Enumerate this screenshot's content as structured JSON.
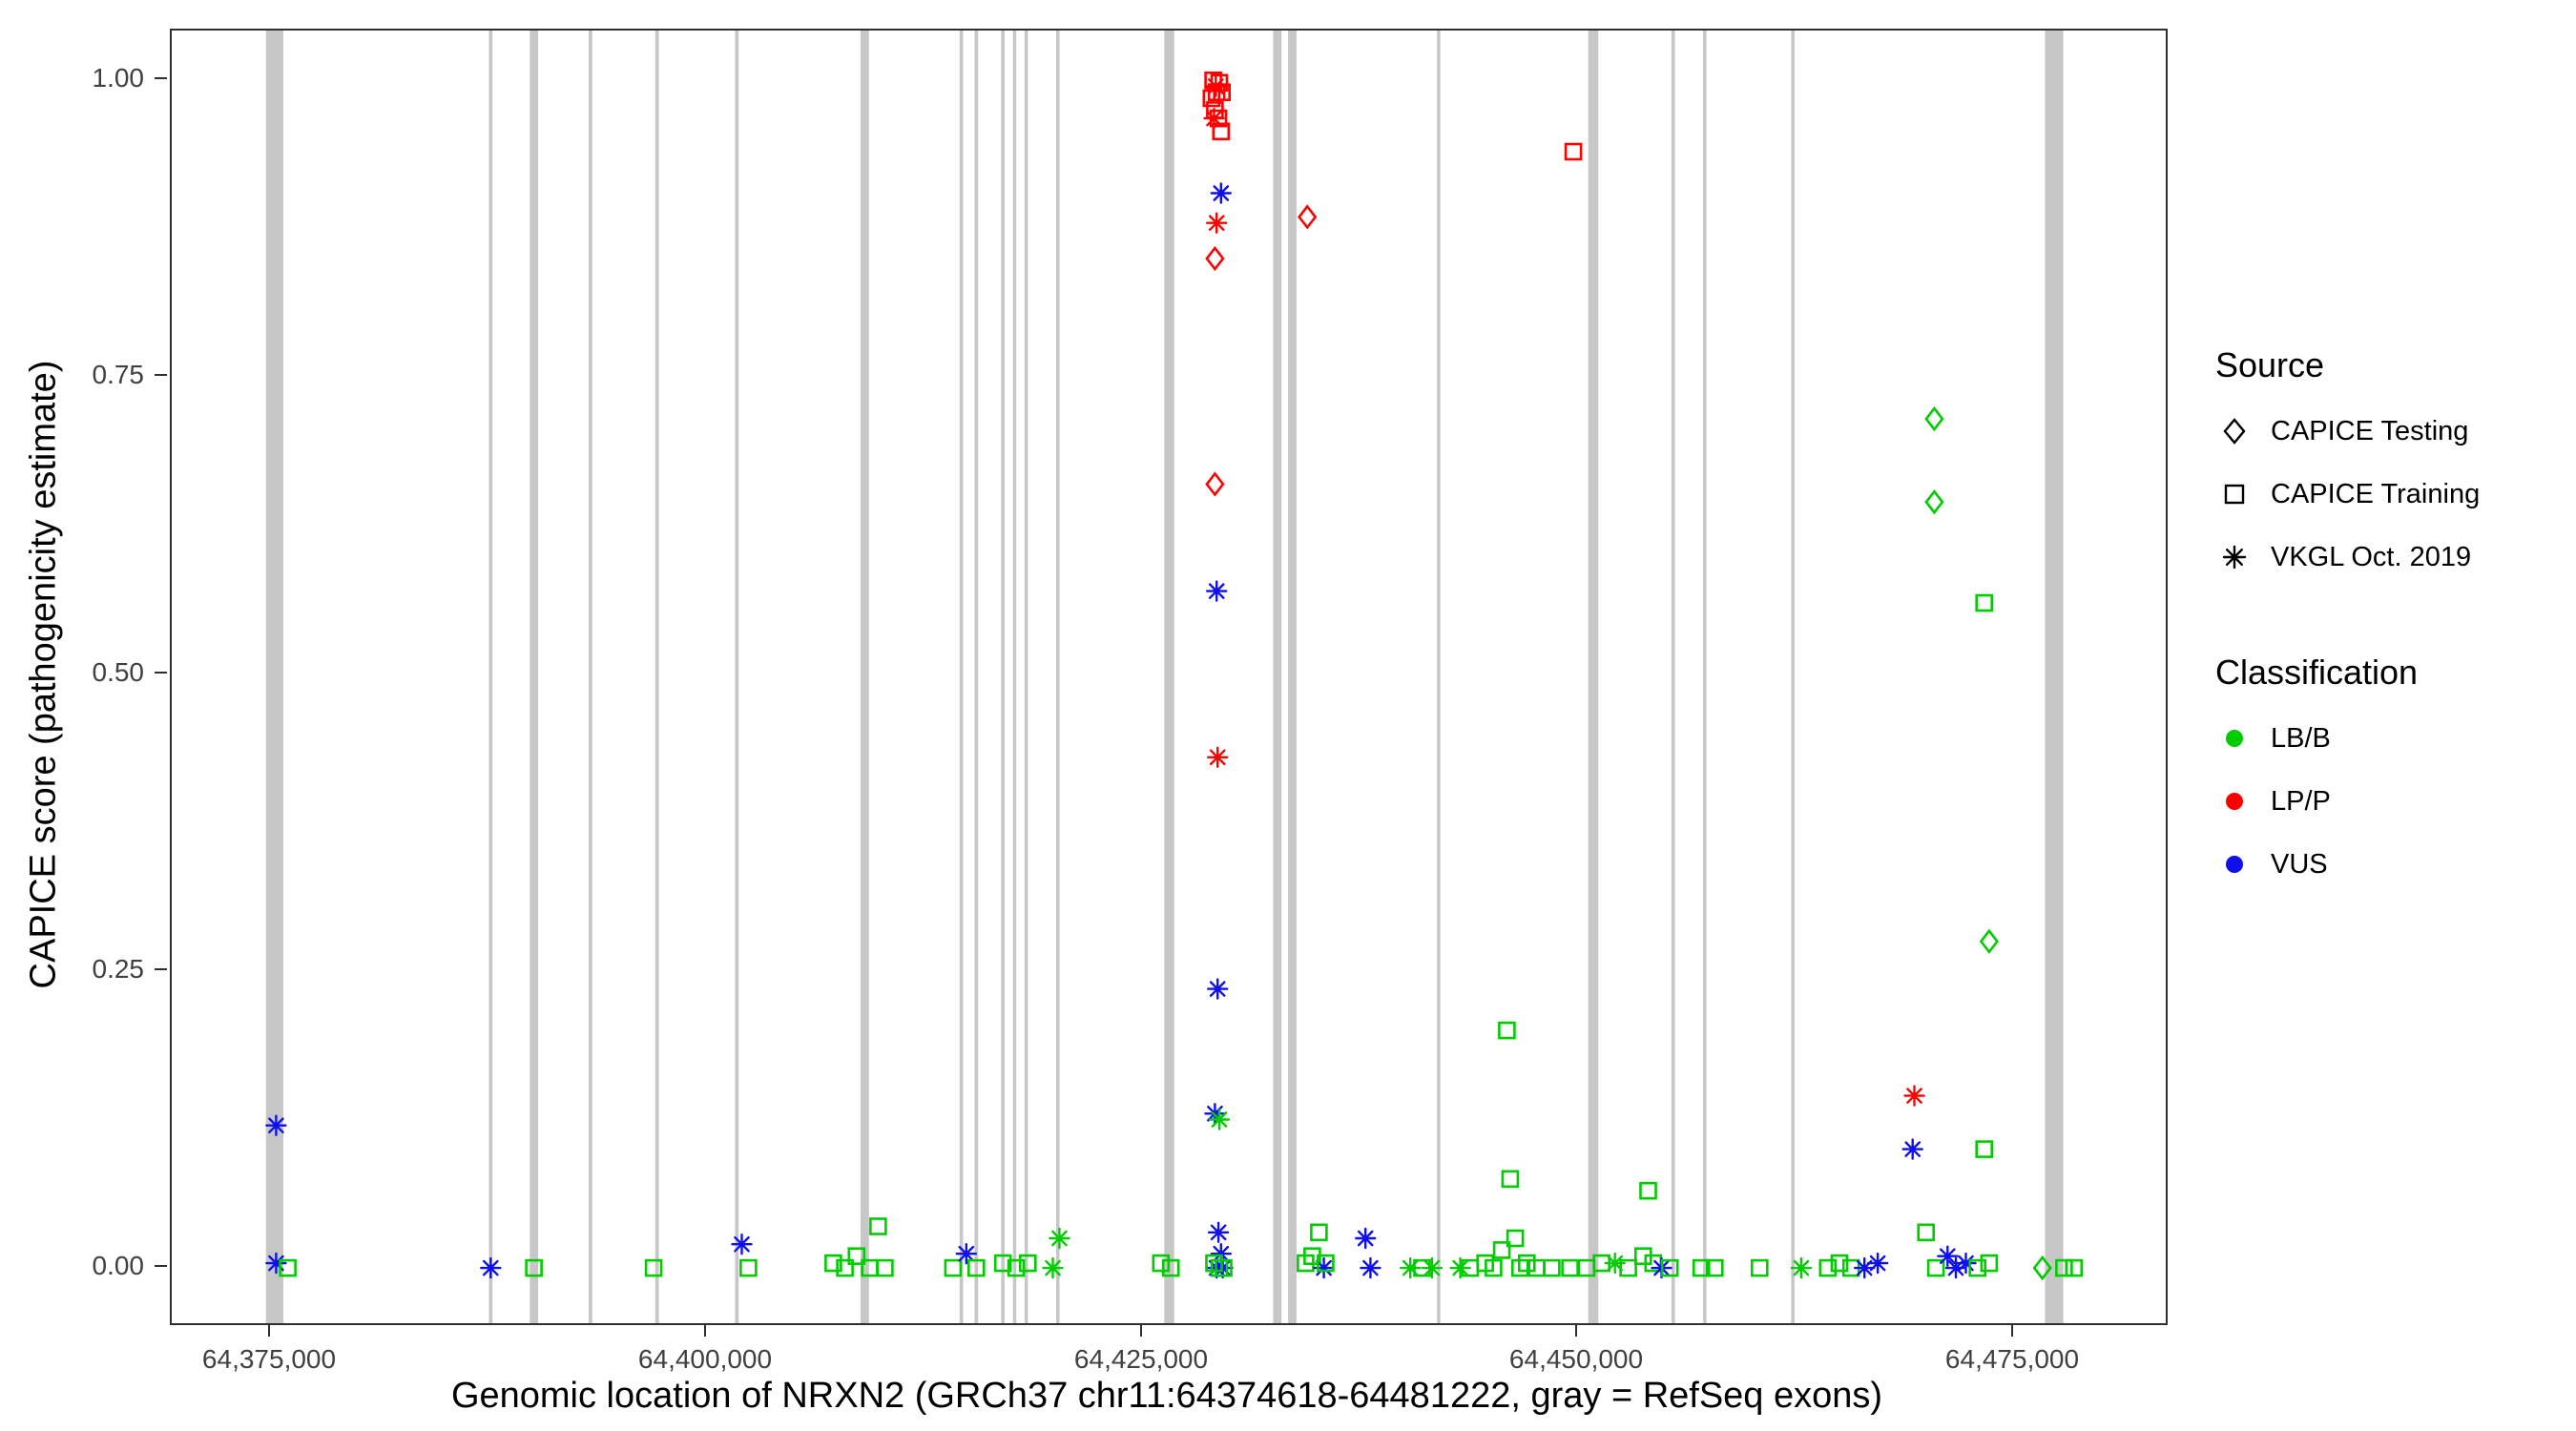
{
  "chart_data": {
    "type": "scatter",
    "title": "",
    "xlabel": "Genomic location of NRXN2 (GRCh37 chr11:64374618-64481222, gray = RefSeq exons)",
    "ylabel": "CAPICE score (pathogenicity estimate)",
    "x_domain": [
      64369300,
      64483700
    ],
    "y_domain": [
      -0.0465,
      1.042
    ],
    "x_ticks": [
      {
        "value": 64375000,
        "label": "64,375,000"
      },
      {
        "value": 64400000,
        "label": "64,400,000"
      },
      {
        "value": 64425000,
        "label": "64,425,000"
      },
      {
        "value": 64450000,
        "label": "64,450,000"
      },
      {
        "value": 64475000,
        "label": "64,475,000"
      }
    ],
    "y_ticks": [
      {
        "value": 0.0,
        "label": "0.00"
      },
      {
        "value": 0.25,
        "label": "0.25"
      },
      {
        "value": 0.5,
        "label": "0.50"
      },
      {
        "value": 0.75,
        "label": "0.75"
      },
      {
        "value": 1.0,
        "label": "1.00"
      }
    ],
    "legend": {
      "source": {
        "title": "Source",
        "items": [
          {
            "label": "CAPICE Testing",
            "shape": "diamond",
            "code": "test"
          },
          {
            "label": "CAPICE Training",
            "shape": "square",
            "code": "train"
          },
          {
            "label": "VKGL Oct. 2019",
            "shape": "asterisk",
            "code": "vkgl"
          }
        ]
      },
      "classification": {
        "title": "Classification",
        "items": [
          {
            "label": "LB/B",
            "color": "#00CC00",
            "code": "LB/B"
          },
          {
            "label": "LP/P",
            "color": "#FF0000",
            "code": "LP/P"
          },
          {
            "label": "VUS",
            "color": "#0F0FEE",
            "code": "VUS"
          }
        ]
      }
    },
    "exon_note": "gray = RefSeq exons",
    "exon_color": "#C7C7C7",
    "exons": [
      [
        64374700,
        64375700
      ],
      [
        64387500,
        64387700
      ],
      [
        64389840,
        64390320
      ],
      [
        64393220,
        64393420
      ],
      [
        64397040,
        64397250
      ],
      [
        64401620,
        64401820
      ],
      [
        64408820,
        64409300
      ],
      [
        64414500,
        64414700
      ],
      [
        64415360,
        64415560
      ],
      [
        64416890,
        64417080
      ],
      [
        64417560,
        64417750
      ],
      [
        64418230,
        64418420
      ],
      [
        64420040,
        64420230
      ],
      [
        64426240,
        64426810
      ],
      [
        64432490,
        64432970
      ],
      [
        64433350,
        64433830
      ],
      [
        64441890,
        64442080
      ],
      [
        64450570,
        64451150
      ],
      [
        64455340,
        64455540
      ],
      [
        64457160,
        64457350
      ],
      [
        64462210,
        64462400
      ],
      [
        64476770,
        64477820
      ]
    ],
    "point_format": [
      "x_genomic_position",
      "y_capice_score",
      "source_code",
      "classification_code"
    ],
    "points": [
      [
        64375286,
        0.12,
        "vkgl",
        "VUS"
      ],
      [
        64375286,
        0.004,
        "vkgl",
        "VUS"
      ],
      [
        64375954,
        0.0,
        "train",
        "LB/B"
      ],
      [
        64387596,
        0.0,
        "vkgl",
        "VUS"
      ],
      [
        64390077,
        0.0,
        "train",
        "LB/B"
      ],
      [
        64396947,
        0.0,
        "train",
        "LB/B"
      ],
      [
        64402003,
        0.02,
        "vkgl",
        "VUS"
      ],
      [
        64402385,
        0.0,
        "train",
        "LB/B"
      ],
      [
        64407252,
        0.004,
        "train",
        "LB/B"
      ],
      [
        64407920,
        0.0,
        "train",
        "LB/B"
      ],
      [
        64408588,
        0.01,
        "train",
        "LB/B"
      ],
      [
        64409351,
        0.0,
        "train",
        "LB/B"
      ],
      [
        64409828,
        0.035,
        "train",
        "LB/B"
      ],
      [
        64410210,
        0.0,
        "train",
        "LB/B"
      ],
      [
        64414122,
        0.0,
        "train",
        "LB/B"
      ],
      [
        64414885,
        0.012,
        "vkgl",
        "VUS"
      ],
      [
        64415458,
        0.0,
        "train",
        "LB/B"
      ],
      [
        64416985,
        0.004,
        "train",
        "LB/B"
      ],
      [
        64417748,
        0.0,
        "train",
        "LB/B"
      ],
      [
        64418416,
        0.004,
        "train",
        "LB/B"
      ],
      [
        64419848,
        0.0,
        "vkgl",
        "LB/B"
      ],
      [
        64420229,
        0.025,
        "vkgl",
        "LB/B"
      ],
      [
        64426049,
        0.004,
        "train",
        "LB/B"
      ],
      [
        64426621,
        0.0,
        "train",
        "LB/B"
      ],
      [
        64429050,
        1.0,
        "train",
        "LP/P"
      ],
      [
        64429400,
        0.998,
        "train",
        "LP/P"
      ],
      [
        64429250,
        0.99,
        "train",
        "LP/P"
      ],
      [
        64428950,
        0.985,
        "train",
        "LP/P"
      ],
      [
        64429550,
        0.99,
        "train",
        "LP/P"
      ],
      [
        64429150,
        0.975,
        "train",
        "LP/P"
      ],
      [
        64429350,
        0.968,
        "train",
        "LP/P"
      ],
      [
        64429500,
        0.957,
        "train",
        "LP/P"
      ],
      [
        64429200,
        0.995,
        "vkgl",
        "LP/P"
      ],
      [
        64429100,
        0.968,
        "vkgl",
        "LP/P"
      ],
      [
        64429250,
        0.88,
        "vkgl",
        "LP/P"
      ],
      [
        64429500,
        0.905,
        "vkgl",
        "VUS"
      ],
      [
        64429150,
        0.85,
        "test",
        "LP/P"
      ],
      [
        64429150,
        0.66,
        "test",
        "LP/P"
      ],
      [
        64429250,
        0.57,
        "vkgl",
        "VUS"
      ],
      [
        64429300,
        0.43,
        "vkgl",
        "LP/P"
      ],
      [
        64429300,
        0.235,
        "vkgl",
        "VUS"
      ],
      [
        64429150,
        0.13,
        "vkgl",
        "VUS"
      ],
      [
        64429400,
        0.125,
        "vkgl",
        "LB/B"
      ],
      [
        64429350,
        0.03,
        "vkgl",
        "VUS"
      ],
      [
        64429500,
        0.012,
        "vkgl",
        "VUS"
      ],
      [
        64429250,
        0.0,
        "vkgl",
        "VUS"
      ],
      [
        64429600,
        0.0,
        "vkgl",
        "VUS"
      ],
      [
        64429100,
        0.004,
        "train",
        "LB/B"
      ],
      [
        64429400,
        0.0,
        "train",
        "LB/B"
      ],
      [
        64429650,
        0.0,
        "train",
        "LB/B"
      ],
      [
        64434446,
        0.885,
        "test",
        "LP/P"
      ],
      [
        64434351,
        0.004,
        "train",
        "LB/B"
      ],
      [
        64434732,
        0.01,
        "train",
        "LB/B"
      ],
      [
        64435114,
        0.03,
        "train",
        "LB/B"
      ],
      [
        64435400,
        0.0,
        "vkgl",
        "VUS"
      ],
      [
        64435500,
        0.004,
        "train",
        "LB/B"
      ],
      [
        64437786,
        0.025,
        "vkgl",
        "VUS"
      ],
      [
        64438072,
        0.0,
        "vkgl",
        "VUS"
      ],
      [
        64440362,
        0.0,
        "vkgl",
        "LB/B"
      ],
      [
        64441030,
        0.0,
        "train",
        "LB/B"
      ],
      [
        64441603,
        0.0,
        "vkgl",
        "LB/B"
      ],
      [
        64443225,
        0.0,
        "vkgl",
        "LB/B"
      ],
      [
        64443797,
        0.0,
        "train",
        "LB/B"
      ],
      [
        64444656,
        0.004,
        "train",
        "LB/B"
      ],
      [
        64445133,
        0.0,
        "train",
        "LB/B"
      ],
      [
        64445610,
        0.015,
        "train",
        "LB/B"
      ],
      [
        64445897,
        0.2,
        "train",
        "LB/B"
      ],
      [
        64446088,
        0.075,
        "train",
        "LB/B"
      ],
      [
        64446374,
        0.025,
        "train",
        "LB/B"
      ],
      [
        64446660,
        0.0,
        "train",
        "LB/B"
      ],
      [
        64447042,
        0.004,
        "train",
        "LB/B"
      ],
      [
        64447614,
        0.0,
        "train",
        "LB/B"
      ],
      [
        64448473,
        0.0,
        "train",
        "LB/B"
      ],
      [
        64449714,
        0.94,
        "train",
        "LP/P"
      ],
      [
        64449523,
        0.0,
        "train",
        "LB/B"
      ],
      [
        64450477,
        0.0,
        "train",
        "LB/B"
      ],
      [
        64451336,
        0.004,
        "train",
        "LB/B"
      ],
      [
        64452100,
        0.004,
        "vkgl",
        "LB/B"
      ],
      [
        64452863,
        0.0,
        "train",
        "LB/B"
      ],
      [
        64453722,
        0.01,
        "train",
        "LB/B"
      ],
      [
        64454008,
        0.065,
        "train",
        "LB/B"
      ],
      [
        64454294,
        0.004,
        "train",
        "LB/B"
      ],
      [
        64454771,
        0.0,
        "vkgl",
        "VUS"
      ],
      [
        64455248,
        0.0,
        "train",
        "LB/B"
      ],
      [
        64457061,
        0.0,
        "train",
        "LB/B"
      ],
      [
        64457825,
        0.0,
        "train",
        "LB/B"
      ],
      [
        64460401,
        0.0,
        "train",
        "LB/B"
      ],
      [
        64462787,
        0.0,
        "vkgl",
        "LB/B"
      ],
      [
        64464313,
        0.0,
        "train",
        "LB/B"
      ],
      [
        64464981,
        0.004,
        "train",
        "LB/B"
      ],
      [
        64465649,
        0.0,
        "train",
        "LB/B"
      ],
      [
        64466413,
        0.0,
        "vkgl",
        "VUS"
      ],
      [
        64467176,
        0.004,
        "vkgl",
        "VUS"
      ],
      [
        64469275,
        0.145,
        "vkgl",
        "LP/P"
      ],
      [
        64469180,
        0.1,
        "vkgl",
        "VUS"
      ],
      [
        64469943,
        0.03,
        "train",
        "LB/B"
      ],
      [
        64470420,
        0.715,
        "test",
        "LB/B"
      ],
      [
        64470420,
        0.645,
        "test",
        "LB/B"
      ],
      [
        64470515,
        0.0,
        "train",
        "LB/B"
      ],
      [
        64471183,
        0.01,
        "vkgl",
        "VUS"
      ],
      [
        64471660,
        0.0,
        "vkgl",
        "VUS"
      ],
      [
        64472233,
        0.004,
        "vkgl",
        "VUS"
      ],
      [
        64472901,
        0.0,
        "train",
        "LB/B"
      ],
      [
        64473283,
        0.56,
        "train",
        "LB/B"
      ],
      [
        64473283,
        0.1,
        "train",
        "LB/B"
      ],
      [
        64473569,
        0.275,
        "test",
        "LB/B"
      ],
      [
        64473569,
        0.004,
        "train",
        "LB/B"
      ],
      [
        64476622,
        0.0,
        "test",
        "LB/B"
      ],
      [
        64477863,
        0.0,
        "train",
        "LB/B"
      ],
      [
        64478435,
        0.0,
        "train",
        "LB/B"
      ]
    ]
  }
}
